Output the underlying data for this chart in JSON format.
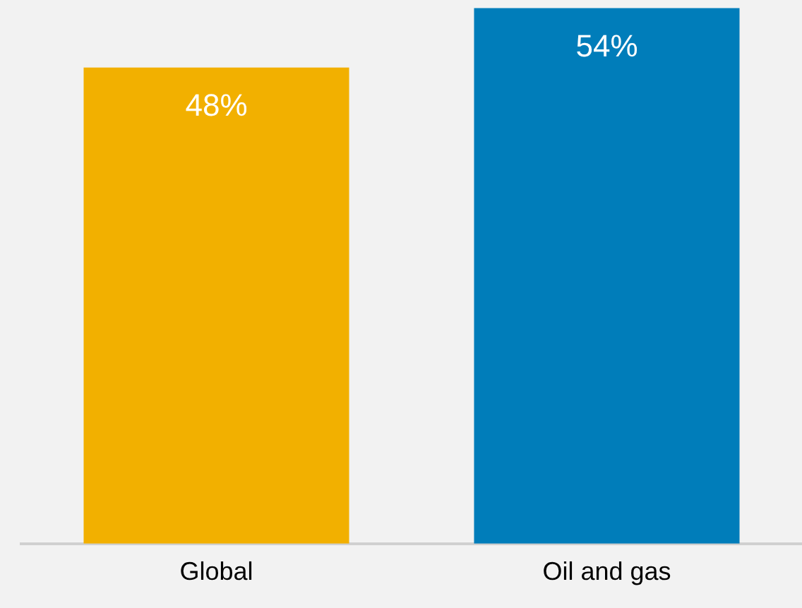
{
  "chart_data": {
    "type": "bar",
    "categories": [
      "Global",
      "Oil and gas"
    ],
    "values": [
      48,
      54
    ],
    "colors": [
      "#f2b000",
      "#007dba"
    ],
    "tick_labels": "x",
    "data_labels": true,
    "value_labels": [
      "48%",
      "54%"
    ],
    "grid": false,
    "legend": false
  }
}
